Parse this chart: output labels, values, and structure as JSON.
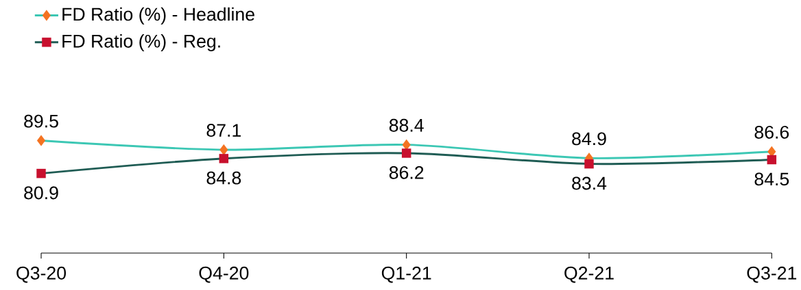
{
  "chart_data": {
    "type": "line",
    "categories": [
      "Q3-20",
      "Q4-20",
      "Q1-21",
      "Q2-21",
      "Q3-21"
    ],
    "series": [
      {
        "name": "FD Ratio (%) - Headline",
        "color": "#3cc7b4",
        "colors": [
          "#f47321",
          "#f47321",
          "#f47321",
          "#f47321",
          "#f47321"
        ],
        "marker": "diamond",
        "values": [
          89.5,
          87.1,
          88.4,
          84.9,
          86.6
        ]
      },
      {
        "name": "FD Ratio (%) - Reg.",
        "color": "#1f5c54",
        "colors": [
          "#c8102e",
          "#c8102e",
          "#c8102e",
          "#c8102e",
          "#c8102e"
        ],
        "marker": "square",
        "values": [
          80.9,
          84.8,
          86.2,
          83.4,
          84.5
        ]
      }
    ],
    "data_labels": true,
    "legend": "top left",
    "tick_labels": "x"
  }
}
